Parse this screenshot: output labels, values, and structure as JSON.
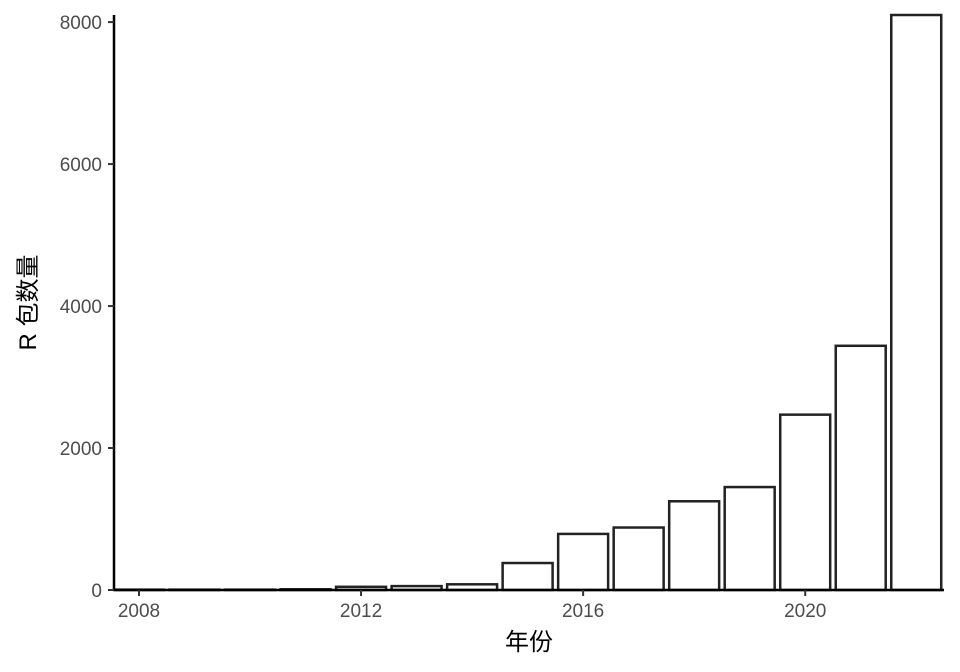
{
  "chart_data": {
    "type": "bar",
    "title": "",
    "xlabel": "年份",
    "ylabel": "R 包数量",
    "x": [
      2008,
      2009,
      2010,
      2011,
      2012,
      2013,
      2014,
      2015,
      2016,
      2017,
      2018,
      2019,
      2020,
      2021,
      2022
    ],
    "values": [
      5,
      5,
      5,
      10,
      45,
      55,
      80,
      380,
      790,
      880,
      1250,
      1450,
      2470,
      3440,
      8100
    ],
    "xticks": [
      2008,
      2012,
      2016,
      2020
    ],
    "yticks": [
      0,
      2000,
      4000,
      6000,
      8000
    ],
    "xlim": [
      2007.55,
      2022.5
    ],
    "ylim": [
      0,
      8100
    ],
    "grid": false,
    "legend": "none",
    "colors": {
      "bar_fill": "#ffffff",
      "bar_stroke": "#222222",
      "axis": "#000000",
      "tick_label": "#4d4d4d"
    }
  }
}
